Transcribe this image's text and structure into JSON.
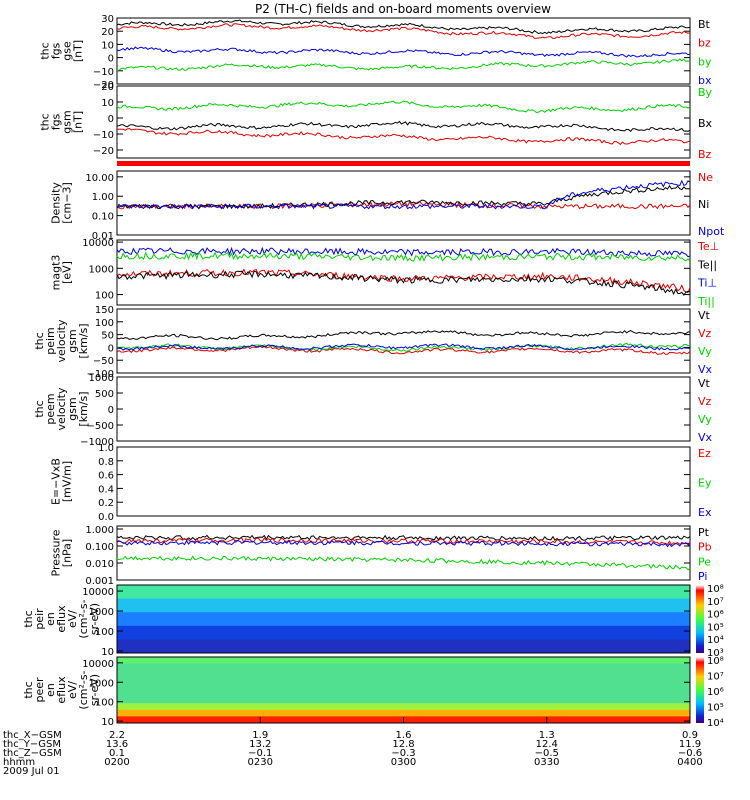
{
  "title": "P2 (TH-C) fields and on-board moments overview",
  "colors": {
    "black": "#000000",
    "red": "#e00000",
    "green": "#00d000",
    "blue": "#0000e0"
  },
  "panels": [
    {
      "key": "fgs_gse",
      "label": [
        "thc",
        "fgs",
        "gse",
        "[nT]"
      ],
      "scale": "linear",
      "ylim": [
        -20,
        30
      ],
      "ticks": [
        "30",
        "20",
        "10",
        "0",
        "−10",
        "−20"
      ],
      "tickvals": [
        30,
        20,
        10,
        0,
        -10,
        -20
      ],
      "legend": [
        {
          "t": "Bt",
          "c": "black"
        },
        {
          "t": "bz",
          "c": "red"
        },
        {
          "t": "by",
          "c": "green"
        },
        {
          "t": "bx",
          "c": "blue"
        }
      ]
    },
    {
      "key": "fgs_gsm",
      "label": [
        "thc",
        "fgs",
        "gsm",
        "[nT]"
      ],
      "scale": "linear",
      "ylim": [
        -25,
        20
      ],
      "ticks": [
        "20",
        "10",
        "0",
        "−10",
        "−20"
      ],
      "tickvals": [
        20,
        10,
        0,
        -10,
        -20
      ],
      "legend": [
        {
          "t": "By",
          "c": "green"
        },
        {
          "t": "Bx",
          "c": "black"
        },
        {
          "t": "Bz",
          "c": "red"
        }
      ]
    },
    {
      "key": "density",
      "label": [
        "Density",
        "[cm−3]"
      ],
      "scale": "log",
      "ylim": [
        0.01,
        20
      ],
      "ticks": [
        "10.00",
        "1.00",
        "0.10",
        "0.01"
      ],
      "tickvals": [
        10,
        1,
        0.1,
        0.01
      ],
      "legend": [
        {
          "t": "Ne",
          "c": "red"
        },
        {
          "t": "Ni",
          "c": "black"
        },
        {
          "t": "Npot",
          "c": "blue"
        }
      ]
    },
    {
      "key": "temp",
      "label": [
        "magt3",
        "[eV]"
      ],
      "scale": "log",
      "ylim": [
        40,
        12000
      ],
      "ticks": [
        "10000",
        "1000",
        "100"
      ],
      "tickvals": [
        10000,
        1000,
        100
      ],
      "legend": [
        {
          "t": "Te⊥",
          "c": "red"
        },
        {
          "t": "Te||",
          "c": "black"
        },
        {
          "t": "Ti⊥",
          "c": "blue"
        },
        {
          "t": "Ti||",
          "c": "green"
        }
      ]
    },
    {
      "key": "peim_v",
      "label": [
        "thc",
        "peim",
        "velocity",
        "gsm",
        "[km/s]"
      ],
      "scale": "linear",
      "ylim": [
        -100,
        150
      ],
      "ticks": [
        "150",
        "100",
        "50",
        "0",
        "−50",
        "−100"
      ],
      "tickvals": [
        150,
        100,
        50,
        0,
        -50,
        -100
      ],
      "legend": [
        {
          "t": "Vt",
          "c": "black"
        },
        {
          "t": "Vz",
          "c": "red"
        },
        {
          "t": "Vy",
          "c": "green"
        },
        {
          "t": "Vx",
          "c": "blue"
        }
      ]
    },
    {
      "key": "peem_v",
      "label": [
        "thc",
        "peem",
        "velocity",
        "gsm",
        "[km/s]"
      ],
      "scale": "linear",
      "ylim": [
        -1000,
        1000
      ],
      "ticks": [
        "1000",
        "500",
        "0",
        "−500",
        "−1000"
      ],
      "tickvals": [
        1000,
        500,
        0,
        -500,
        -1000
      ],
      "legend": [
        {
          "t": "Vt",
          "c": "black"
        },
        {
          "t": "Vz",
          "c": "red"
        },
        {
          "t": "Vy",
          "c": "green"
        },
        {
          "t": "Vx",
          "c": "blue"
        }
      ]
    },
    {
      "key": "efield",
      "label": [
        "E=−VxB",
        "[mV/m]"
      ],
      "scale": "linear",
      "ylim": [
        0,
        1
      ],
      "ticks": [
        "1.0",
        "0.8",
        "0.6",
        "0.4",
        "0.2",
        "0.0"
      ],
      "tickvals": [
        1,
        0.8,
        0.6,
        0.4,
        0.2,
        0
      ],
      "legend": [
        {
          "t": "Ez",
          "c": "red"
        },
        {
          "t": "Ey",
          "c": "green"
        },
        {
          "t": "Ex",
          "c": "blue"
        }
      ]
    },
    {
      "key": "pressure",
      "label": [
        "Pressure",
        "[nPa]"
      ],
      "scale": "log",
      "ylim": [
        0.001,
        1.5
      ],
      "ticks": [
        "1.000",
        "0.100",
        "0.010",
        "0.001"
      ],
      "tickvals": [
        1,
        0.1,
        0.01,
        0.001
      ],
      "legend": [
        {
          "t": "Pt",
          "c": "black"
        },
        {
          "t": "Pb",
          "c": "red"
        },
        {
          "t": "Pe",
          "c": "green"
        },
        {
          "t": "Pi",
          "c": "blue"
        }
      ]
    },
    {
      "key": "peir",
      "label": [
        "thc",
        "peir",
        "en",
        "eflux",
        "eV/",
        "(cm²-s-",
        "sr-eV)"
      ],
      "scale": "log",
      "ylim": [
        8,
        20000
      ],
      "ticks": [
        "10000",
        "1000",
        "100",
        "10"
      ],
      "tickvals": [
        10000,
        1000,
        100,
        10
      ],
      "colorbar": [
        "10⁸",
        "10⁷",
        "10⁶",
        "10⁵",
        "10⁴",
        "10³"
      ]
    },
    {
      "key": "peer",
      "label": [
        "thc",
        "peer",
        "en",
        "eflux",
        "eV/",
        "(cm²-s-",
        "sr-eV)"
      ],
      "scale": "log",
      "ylim": [
        8,
        20000
      ],
      "ticks": [
        "10000",
        "1000",
        "100",
        "10"
      ],
      "tickvals": [
        10000,
        1000,
        100,
        10
      ],
      "colorbar": [
        "10⁸",
        "10⁷",
        "10⁶",
        "10⁵",
        "10⁴"
      ]
    }
  ],
  "xaxis": {
    "rows": [
      {
        "label": "thc_X−GSM",
        "values": [
          "2.2",
          "1.9",
          "1.6",
          "1.3",
          "0.9"
        ]
      },
      {
        "label": "thc_Y−GSM",
        "values": [
          "13.6",
          "13.2",
          "12.8",
          "12.4",
          "11.9"
        ]
      },
      {
        "label": "thc_Z−GSM",
        "values": [
          "0.1",
          "−0.1",
          "−0.3",
          "−0.5",
          "−0.6"
        ]
      },
      {
        "label": "hhmm",
        "values": [
          "0200",
          "0230",
          "0300",
          "0330",
          "0400"
        ]
      }
    ],
    "date": "2009 Jul 01"
  },
  "chart_data": {
    "type": "line",
    "title": "P2 (TH-C) fields and on-board moments overview",
    "x": [
      "0200",
      "0230",
      "0300",
      "0330",
      "0400"
    ],
    "series": [
      {
        "name": "Bt",
        "panel": "fgs_gse",
        "values": [
          25,
          27,
          24,
          20,
          22
        ]
      },
      {
        "name": "bz",
        "panel": "fgs_gse",
        "values": [
          22,
          24,
          21,
          16,
          18
        ]
      },
      {
        "name": "by",
        "panel": "fgs_gse",
        "values": [
          -9,
          -6,
          -8,
          -5,
          -3
        ]
      },
      {
        "name": "bx",
        "panel": "fgs_gse",
        "values": [
          6,
          5,
          4,
          3,
          2
        ]
      },
      {
        "name": "By",
        "panel": "fgs_gsm",
        "values": [
          6,
          8,
          9,
          5,
          7
        ]
      },
      {
        "name": "Bx",
        "panel": "fgs_gsm",
        "values": [
          -6,
          -5,
          -4,
          -5,
          -8
        ]
      },
      {
        "name": "Bz",
        "panel": "fgs_gsm",
        "values": [
          -8,
          -10,
          -12,
          -14,
          -15
        ]
      },
      {
        "name": "Ne",
        "panel": "density",
        "values": [
          0.3,
          0.3,
          0.4,
          0.3,
          0.3
        ]
      },
      {
        "name": "Ni",
        "panel": "density",
        "values": [
          0.3,
          0.3,
          0.5,
          0.4,
          3
        ]
      },
      {
        "name": "Npot",
        "panel": "density",
        "values": [
          0.3,
          0.3,
          0.3,
          0.3,
          5
        ]
      },
      {
        "name": "Te⊥",
        "panel": "temp",
        "values": [
          600,
          700,
          400,
          500,
          150
        ]
      },
      {
        "name": "Te||",
        "panel": "temp",
        "values": [
          500,
          600,
          350,
          400,
          100
        ]
      },
      {
        "name": "Ti⊥",
        "panel": "temp",
        "values": [
          4500,
          4500,
          4000,
          4300,
          3500
        ]
      },
      {
        "name": "Ti||",
        "panel": "temp",
        "values": [
          3000,
          3000,
          2500,
          2800,
          2500
        ]
      },
      {
        "name": "Vt",
        "panel": "peim_v",
        "values": [
          40,
          40,
          60,
          50,
          60
        ]
      },
      {
        "name": "Vz",
        "panel": "peim_v",
        "values": [
          -10,
          -5,
          -15,
          -10,
          -20
        ]
      },
      {
        "name": "Vy",
        "panel": "peim_v",
        "values": [
          5,
          0,
          -5,
          0,
          10
        ]
      },
      {
        "name": "Vx",
        "panel": "peim_v",
        "values": [
          0,
          0,
          5,
          0,
          0
        ]
      },
      {
        "name": "Pt",
        "panel": "pressure",
        "values": [
          0.3,
          0.32,
          0.3,
          0.28,
          0.3
        ]
      },
      {
        "name": "Pb",
        "panel": "pressure",
        "values": [
          0.2,
          0.22,
          0.2,
          0.18,
          0.15
        ]
      },
      {
        "name": "Pe",
        "panel": "pressure",
        "values": [
          0.02,
          0.018,
          0.015,
          0.01,
          0.005
        ]
      },
      {
        "name": "Pi",
        "panel": "pressure",
        "values": [
          0.15,
          0.16,
          0.15,
          0.14,
          0.12
        ]
      }
    ]
  }
}
